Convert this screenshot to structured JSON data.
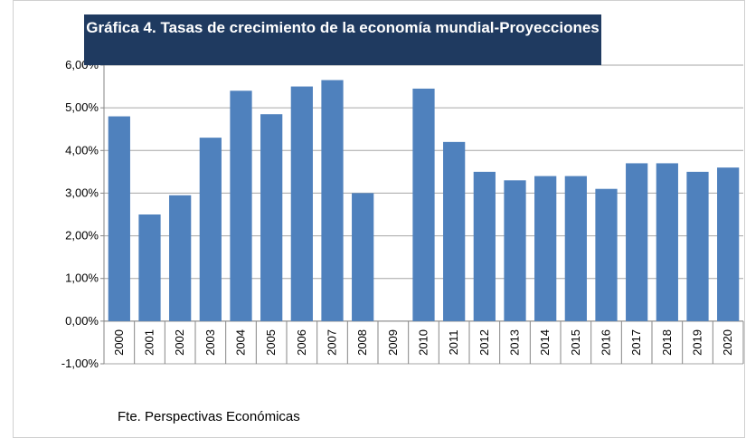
{
  "chart_data": {
    "type": "bar",
    "title": "Gráfica 4. Tasas de crecimiento de la economía mundial-Proyecciones",
    "source": "Fte. Perspectivas Económicas",
    "categories": [
      "2000",
      "2001",
      "2002",
      "2003",
      "2004",
      "2005",
      "2006",
      "2007",
      "2008",
      "2009",
      "2010",
      "2011",
      "2012",
      "2013",
      "2014",
      "2015",
      "2016",
      "2017",
      "2018",
      "2019",
      "2020"
    ],
    "values": [
      4.8,
      2.5,
      2.95,
      4.3,
      5.4,
      4.85,
      5.5,
      5.65,
      3.0,
      0,
      5.45,
      4.2,
      3.5,
      3.3,
      3.4,
      3.4,
      3.1,
      3.7,
      3.7,
      3.5,
      3.6
    ],
    "color": "#4f81bd",
    "ylim": [
      -1,
      6
    ],
    "yticks": [
      {
        "value": -1,
        "label": "-1,00%"
      },
      {
        "value": 0,
        "label": "0,00%"
      },
      {
        "value": 1,
        "label": "1,00%"
      },
      {
        "value": 2,
        "label": "2,00%"
      },
      {
        "value": 3,
        "label": "3,00%"
      },
      {
        "value": 4,
        "label": "4,00%"
      },
      {
        "value": 5,
        "label": "5,00%"
      },
      {
        "value": 6,
        "label": "6,00%"
      }
    ],
    "grid": true
  }
}
